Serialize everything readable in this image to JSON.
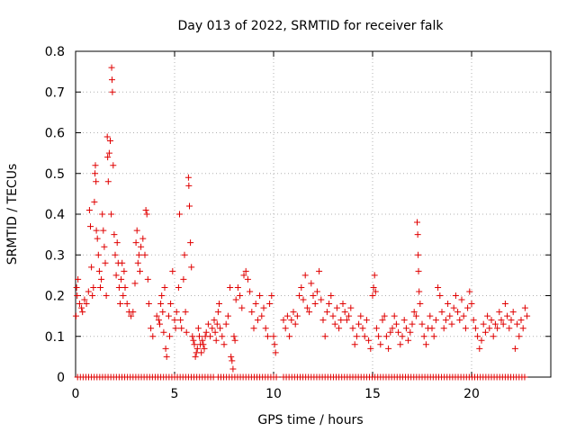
{
  "chart_data": {
    "type": "scatter",
    "title": "Day 013 of 2022, SRMTID for receiver falk",
    "xlabel": "GPS time / hours",
    "ylabel": "SRMTID / TECUs",
    "xlim": [
      0,
      24
    ],
    "ylim": [
      0,
      0.8
    ],
    "grid": true,
    "x_ticks": [
      0,
      5,
      10,
      15,
      20
    ],
    "x_tick_labels": [
      "0",
      "5",
      "10",
      "15",
      "20"
    ],
    "y_ticks": [
      0,
      0.1,
      0.2,
      0.3,
      0.4,
      0.5,
      0.6,
      0.7,
      0.8
    ],
    "y_tick_labels": [
      "0",
      "0.1",
      "0.2",
      "0.3",
      "0.4",
      "0.5",
      "0.6",
      "0.7",
      "0.8"
    ],
    "marker": "+",
    "marker_color": "#e00000",
    "series": [
      {
        "name": "SRMTID",
        "points": [
          [
            0.02,
            0.15
          ],
          [
            0.05,
            0.22
          ],
          [
            0.08,
            0.2
          ],
          [
            0.12,
            0.24
          ],
          [
            0.2,
            0.18
          ],
          [
            0.3,
            0.17
          ],
          [
            0.35,
            0.16
          ],
          [
            0.45,
            0.19
          ],
          [
            0.55,
            0.18
          ],
          [
            0.65,
            0.21
          ],
          [
            0.7,
            0.41
          ],
          [
            0.75,
            0.37
          ],
          [
            0.8,
            0.27
          ],
          [
            0.85,
            0.2
          ],
          [
            0.9,
            0.22
          ],
          [
            0.95,
            0.43
          ],
          [
            0.98,
            0.5
          ],
          [
            1.0,
            0.52
          ],
          [
            1.03,
            0.48
          ],
          [
            1.05,
            0.36
          ],
          [
            1.1,
            0.34
          ],
          [
            1.15,
            0.3
          ],
          [
            1.2,
            0.26
          ],
          [
            1.25,
            0.22
          ],
          [
            1.3,
            0.24
          ],
          [
            1.35,
            0.4
          ],
          [
            1.4,
            0.36
          ],
          [
            1.45,
            0.32
          ],
          [
            1.5,
            0.28
          ],
          [
            1.55,
            0.2
          ],
          [
            1.6,
            0.59
          ],
          [
            1.62,
            0.54
          ],
          [
            1.65,
            0.48
          ],
          [
            1.7,
            0.55
          ],
          [
            1.75,
            0.58
          ],
          [
            1.8,
            0.4
          ],
          [
            1.82,
            0.76
          ],
          [
            1.84,
            0.73
          ],
          [
            1.86,
            0.7
          ],
          [
            1.9,
            0.52
          ],
          [
            1.95,
            0.35
          ],
          [
            2.0,
            0.3
          ],
          [
            2.05,
            0.25
          ],
          [
            2.1,
            0.33
          ],
          [
            2.15,
            0.28
          ],
          [
            2.2,
            0.22
          ],
          [
            2.25,
            0.18
          ],
          [
            2.3,
            0.24
          ],
          [
            2.35,
            0.28
          ],
          [
            2.4,
            0.2
          ],
          [
            2.45,
            0.26
          ],
          [
            2.5,
            0.22
          ],
          [
            2.6,
            0.18
          ],
          [
            2.7,
            0.16
          ],
          [
            2.8,
            0.15
          ],
          [
            2.9,
            0.16
          ],
          [
            3.0,
            0.23
          ],
          [
            3.05,
            0.33
          ],
          [
            3.1,
            0.36
          ],
          [
            3.15,
            0.28
          ],
          [
            3.2,
            0.3
          ],
          [
            3.25,
            0.26
          ],
          [
            3.3,
            0.32
          ],
          [
            3.4,
            0.34
          ],
          [
            3.5,
            0.3
          ],
          [
            3.55,
            0.41
          ],
          [
            3.6,
            0.4
          ],
          [
            3.65,
            0.24
          ],
          [
            3.7,
            0.18
          ],
          [
            3.8,
            0.12
          ],
          [
            3.9,
            0.1
          ],
          [
            4.1,
            0.15
          ],
          [
            4.2,
            0.14
          ],
          [
            4.25,
            0.13
          ],
          [
            4.3,
            0.18
          ],
          [
            4.35,
            0.2
          ],
          [
            4.4,
            0.16
          ],
          [
            4.45,
            0.11
          ],
          [
            4.5,
            0.22
          ],
          [
            4.55,
            0.07
          ],
          [
            4.6,
            0.05
          ],
          [
            4.7,
            0.15
          ],
          [
            4.75,
            0.1
          ],
          [
            4.8,
            0.18
          ],
          [
            4.9,
            0.26
          ],
          [
            5.0,
            0.14
          ],
          [
            5.05,
            0.12
          ],
          [
            5.1,
            0.16
          ],
          [
            5.2,
            0.22
          ],
          [
            5.25,
            0.4
          ],
          [
            5.3,
            0.14
          ],
          [
            5.35,
            0.12
          ],
          [
            5.45,
            0.24
          ],
          [
            5.5,
            0.3
          ],
          [
            5.55,
            0.16
          ],
          [
            5.6,
            0.11
          ],
          [
            5.7,
            0.49
          ],
          [
            5.72,
            0.47
          ],
          [
            5.75,
            0.42
          ],
          [
            5.8,
            0.33
          ],
          [
            5.85,
            0.27
          ],
          [
            5.9,
            0.1
          ],
          [
            5.95,
            0.09
          ],
          [
            6.0,
            0.08
          ],
          [
            6.05,
            0.05
          ],
          [
            6.1,
            0.06
          ],
          [
            6.15,
            0.07
          ],
          [
            6.2,
            0.12
          ],
          [
            6.25,
            0.1
          ],
          [
            6.3,
            0.08
          ],
          [
            6.35,
            0.06
          ],
          [
            6.4,
            0.09
          ],
          [
            6.45,
            0.08
          ],
          [
            6.5,
            0.07
          ],
          [
            6.55,
            0.1
          ],
          [
            6.6,
            0.11
          ],
          [
            6.7,
            0.13
          ],
          [
            6.8,
            0.1
          ],
          [
            6.9,
            0.12
          ],
          [
            7.0,
            0.14
          ],
          [
            7.05,
            0.11
          ],
          [
            7.1,
            0.09
          ],
          [
            7.15,
            0.13
          ],
          [
            7.2,
            0.16
          ],
          [
            7.25,
            0.18
          ],
          [
            7.3,
            0.12
          ],
          [
            7.4,
            0.1
          ],
          [
            7.5,
            0.08
          ],
          [
            7.6,
            0.13
          ],
          [
            7.7,
            0.15
          ],
          [
            7.8,
            0.22
          ],
          [
            7.85,
            0.05
          ],
          [
            7.9,
            0.04
          ],
          [
            7.95,
            0.02
          ],
          [
            8.0,
            0.1
          ],
          [
            8.05,
            0.09
          ],
          [
            8.1,
            0.19
          ],
          [
            8.2,
            0.22
          ],
          [
            8.3,
            0.2
          ],
          [
            8.4,
            0.17
          ],
          [
            8.5,
            0.25
          ],
          [
            8.6,
            0.26
          ],
          [
            8.7,
            0.24
          ],
          [
            8.8,
            0.21
          ],
          [
            8.9,
            0.16
          ],
          [
            9.0,
            0.12
          ],
          [
            9.1,
            0.18
          ],
          [
            9.2,
            0.14
          ],
          [
            9.3,
            0.2
          ],
          [
            9.4,
            0.15
          ],
          [
            9.5,
            0.17
          ],
          [
            9.6,
            0.12
          ],
          [
            9.7,
            0.1
          ],
          [
            9.8,
            0.18
          ],
          [
            9.9,
            0.2
          ],
          [
            10.0,
            0.1
          ],
          [
            10.05,
            0.08
          ],
          [
            10.1,
            0.06
          ],
          [
            10.5,
            0.14
          ],
          [
            10.6,
            0.12
          ],
          [
            10.7,
            0.15
          ],
          [
            10.8,
            0.1
          ],
          [
            10.9,
            0.14
          ],
          [
            11.0,
            0.16
          ],
          [
            11.1,
            0.13
          ],
          [
            11.2,
            0.15
          ],
          [
            11.3,
            0.2
          ],
          [
            11.4,
            0.22
          ],
          [
            11.5,
            0.19
          ],
          [
            11.6,
            0.25
          ],
          [
            11.7,
            0.17
          ],
          [
            11.8,
            0.16
          ],
          [
            11.9,
            0.23
          ],
          [
            12.0,
            0.2
          ],
          [
            12.1,
            0.18
          ],
          [
            12.2,
            0.21
          ],
          [
            12.3,
            0.26
          ],
          [
            12.4,
            0.19
          ],
          [
            12.5,
            0.14
          ],
          [
            12.6,
            0.1
          ],
          [
            12.7,
            0.16
          ],
          [
            12.8,
            0.18
          ],
          [
            12.9,
            0.2
          ],
          [
            13.0,
            0.15
          ],
          [
            13.1,
            0.13
          ],
          [
            13.2,
            0.17
          ],
          [
            13.3,
            0.12
          ],
          [
            13.4,
            0.14
          ],
          [
            13.5,
            0.18
          ],
          [
            13.6,
            0.16
          ],
          [
            13.7,
            0.14
          ],
          [
            13.8,
            0.15
          ],
          [
            13.9,
            0.17
          ],
          [
            14.0,
            0.12
          ],
          [
            14.1,
            0.08
          ],
          [
            14.2,
            0.1
          ],
          [
            14.3,
            0.13
          ],
          [
            14.4,
            0.15
          ],
          [
            14.5,
            0.12
          ],
          [
            14.6,
            0.1
          ],
          [
            14.7,
            0.14
          ],
          [
            14.8,
            0.09
          ],
          [
            14.9,
            0.07
          ],
          [
            15.0,
            0.2
          ],
          [
            15.05,
            0.22
          ],
          [
            15.1,
            0.25
          ],
          [
            15.15,
            0.21
          ],
          [
            15.2,
            0.12
          ],
          [
            15.3,
            0.1
          ],
          [
            15.4,
            0.08
          ],
          [
            15.5,
            0.14
          ],
          [
            15.6,
            0.15
          ],
          [
            15.7,
            0.1
          ],
          [
            15.8,
            0.07
          ],
          [
            15.9,
            0.11
          ],
          [
            16.0,
            0.12
          ],
          [
            16.1,
            0.15
          ],
          [
            16.2,
            0.13
          ],
          [
            16.3,
            0.11
          ],
          [
            16.4,
            0.08
          ],
          [
            16.5,
            0.1
          ],
          [
            16.6,
            0.14
          ],
          [
            16.7,
            0.12
          ],
          [
            16.8,
            0.09
          ],
          [
            16.9,
            0.11
          ],
          [
            17.0,
            0.13
          ],
          [
            17.1,
            0.16
          ],
          [
            17.2,
            0.15
          ],
          [
            17.25,
            0.38
          ],
          [
            17.28,
            0.35
          ],
          [
            17.3,
            0.3
          ],
          [
            17.32,
            0.26
          ],
          [
            17.35,
            0.21
          ],
          [
            17.4,
            0.18
          ],
          [
            17.5,
            0.13
          ],
          [
            17.6,
            0.1
          ],
          [
            17.7,
            0.08
          ],
          [
            17.8,
            0.12
          ],
          [
            17.9,
            0.15
          ],
          [
            18.0,
            0.12
          ],
          [
            18.1,
            0.1
          ],
          [
            18.2,
            0.14
          ],
          [
            18.3,
            0.22
          ],
          [
            18.4,
            0.2
          ],
          [
            18.5,
            0.16
          ],
          [
            18.6,
            0.12
          ],
          [
            18.7,
            0.14
          ],
          [
            18.8,
            0.18
          ],
          [
            18.9,
            0.15
          ],
          [
            19.0,
            0.13
          ],
          [
            19.1,
            0.17
          ],
          [
            19.2,
            0.2
          ],
          [
            19.3,
            0.16
          ],
          [
            19.4,
            0.14
          ],
          [
            19.5,
            0.19
          ],
          [
            19.6,
            0.15
          ],
          [
            19.7,
            0.12
          ],
          [
            19.8,
            0.17
          ],
          [
            19.9,
            0.21
          ],
          [
            20.0,
            0.18
          ],
          [
            20.1,
            0.14
          ],
          [
            20.2,
            0.12
          ],
          [
            20.3,
            0.1
          ],
          [
            20.4,
            0.07
          ],
          [
            20.5,
            0.09
          ],
          [
            20.6,
            0.13
          ],
          [
            20.7,
            0.11
          ],
          [
            20.8,
            0.15
          ],
          [
            20.9,
            0.12
          ],
          [
            21.0,
            0.14
          ],
          [
            21.1,
            0.1
          ],
          [
            21.2,
            0.13
          ],
          [
            21.3,
            0.12
          ],
          [
            21.4,
            0.16
          ],
          [
            21.5,
            0.14
          ],
          [
            21.6,
            0.13
          ],
          [
            21.7,
            0.18
          ],
          [
            21.8,
            0.15
          ],
          [
            21.9,
            0.12
          ],
          [
            22.0,
            0.14
          ],
          [
            22.1,
            0.16
          ],
          [
            22.2,
            0.07
          ],
          [
            22.3,
            0.13
          ],
          [
            22.4,
            0.1
          ],
          [
            22.5,
            0.14
          ],
          [
            22.6,
            0.12
          ],
          [
            22.7,
            0.17
          ],
          [
            22.8,
            0.15
          ]
        ]
      }
    ],
    "zero_band": [
      [
        0.1,
        7.0
      ],
      [
        7.2,
        10.2
      ],
      [
        10.5,
        22.7
      ]
    ]
  }
}
